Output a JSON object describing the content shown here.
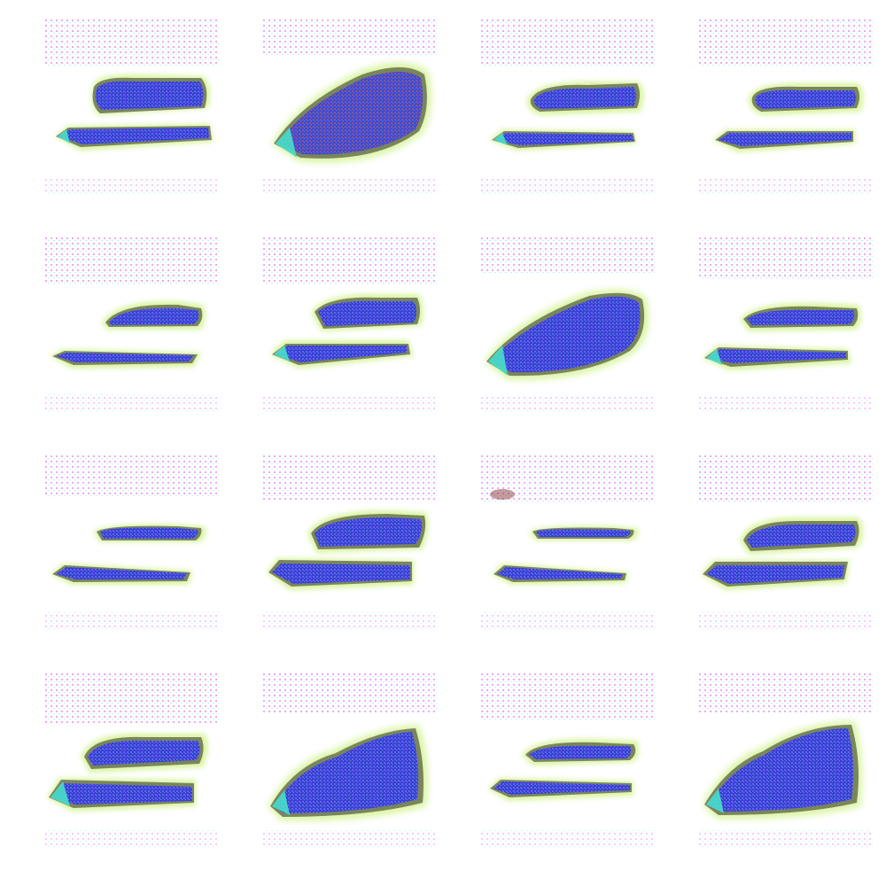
{
  "grid": {
    "rows": 4,
    "columns": 4
  },
  "palette": {
    "background": "#ffffff",
    "noise_magenta": "#e05cf0",
    "noise_cyan": "#6fe3f2",
    "blob_blue": "#3b3ed8",
    "blob_dark_rim": "#3a3a2a",
    "halo_green": "#c9f07a",
    "highlight_cyan": "#49e0c8",
    "interior_orange": "#c86a3c"
  },
  "tiles": [
    {
      "variant": "two-strokes"
    },
    {
      "variant": "large-blob-warm"
    },
    {
      "variant": "two-strokes"
    },
    {
      "variant": "two-strokes-thin"
    },
    {
      "variant": "two-strokes-thin"
    },
    {
      "variant": "two-strokes"
    },
    {
      "variant": "large-blob"
    },
    {
      "variant": "two-strokes"
    },
    {
      "variant": "two-strokes-thin"
    },
    {
      "variant": "two-strokes-wide"
    },
    {
      "variant": "two-strokes-thin"
    },
    {
      "variant": "two-strokes-wide"
    },
    {
      "variant": "two-strokes-wide"
    },
    {
      "variant": "large-blob"
    },
    {
      "variant": "two-strokes"
    },
    {
      "variant": "large-blob"
    }
  ]
}
